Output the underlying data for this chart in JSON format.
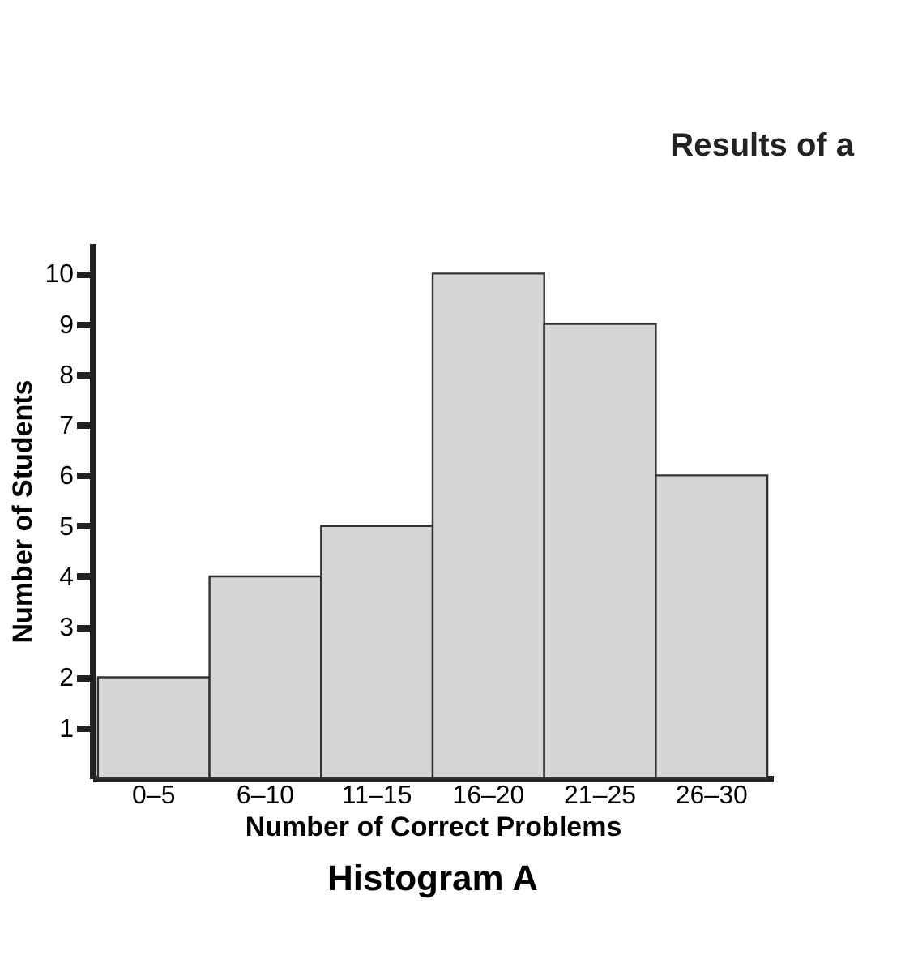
{
  "chart_data": {
    "type": "bar",
    "title": "Histogram A",
    "xlabel": "Number of Correct Problems",
    "ylabel": "Number of Students",
    "categories": [
      "0–5",
      "6–10",
      "11–15",
      "16–20",
      "21–25",
      "26–30"
    ],
    "values": [
      2,
      4,
      5,
      10,
      9,
      6
    ],
    "color": "#d6d6d6",
    "ylim": [
      0,
      10.6
    ],
    "yticks": [
      1,
      2,
      3,
      4,
      5,
      6,
      7,
      8,
      9,
      10
    ],
    "grid": false,
    "annotations": [
      "Results of a"
    ]
  }
}
